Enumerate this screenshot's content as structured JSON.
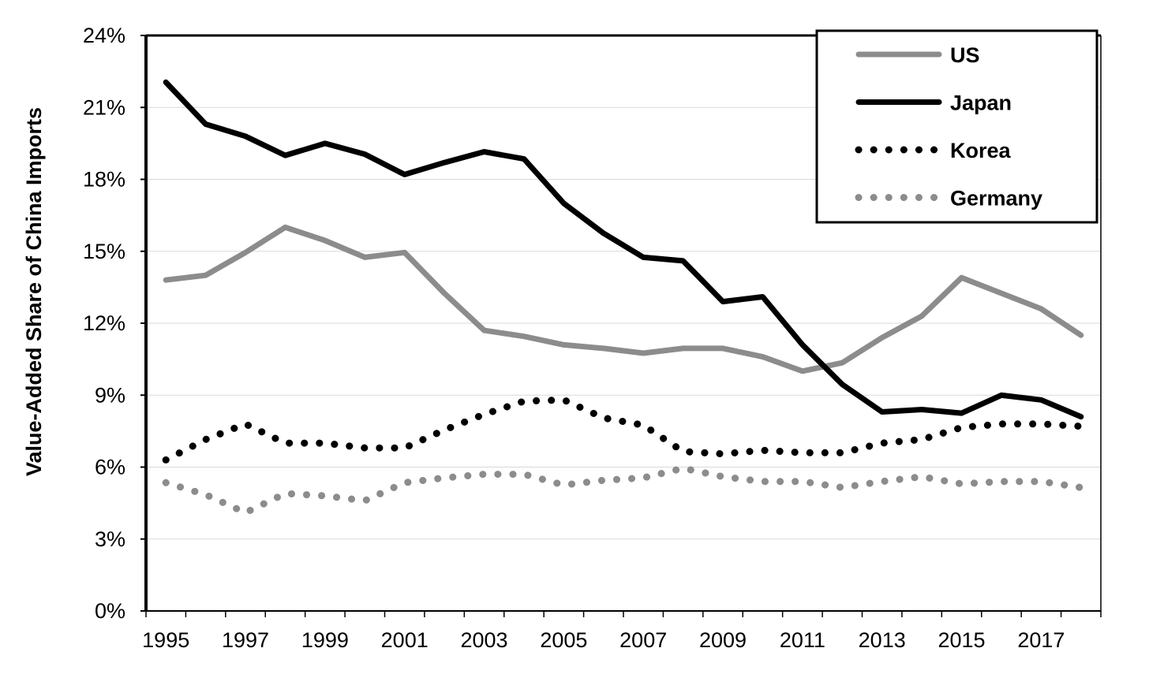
{
  "chart_data": {
    "type": "line",
    "title": "",
    "xlabel": "",
    "ylabel": "Value-Added Share of China Imports",
    "x": [
      1995,
      1996,
      1997,
      1998,
      1999,
      2000,
      2001,
      2002,
      2003,
      2004,
      2005,
      2006,
      2007,
      2008,
      2009,
      2010,
      2011,
      2012,
      2013,
      2014,
      2015,
      2016,
      2017,
      2018
    ],
    "x_tick_labels": [
      "1995",
      "1997",
      "1999",
      "2001",
      "2003",
      "2005",
      "2007",
      "2009",
      "2011",
      "2013",
      "2015",
      "2017"
    ],
    "y_tick_labels": [
      "0%",
      "3%",
      "6%",
      "9%",
      "12%",
      "15%",
      "18%",
      "21%",
      "24%"
    ],
    "ylim": [
      0,
      24
    ],
    "grid": "horizontal",
    "legend_position": "top-right",
    "series": [
      {
        "name": "US",
        "color": "#8c8c8c",
        "style": "solid",
        "values": [
          13.8,
          14.0,
          14.95,
          16.0,
          15.45,
          14.75,
          14.95,
          13.25,
          11.7,
          11.45,
          11.1,
          10.95,
          10.75,
          10.95,
          10.95,
          10.6,
          10.0,
          10.35,
          11.4,
          12.3,
          13.9,
          13.25,
          12.6,
          11.5
        ]
      },
      {
        "name": "Japan",
        "color": "#000000",
        "style": "solid",
        "values": [
          22.05,
          20.3,
          19.8,
          19.0,
          19.5,
          19.05,
          18.2,
          18.7,
          19.15,
          18.85,
          17.0,
          15.75,
          14.75,
          14.6,
          12.9,
          13.1,
          11.1,
          9.45,
          8.3,
          8.4,
          8.25,
          9.0,
          8.8,
          8.1
        ]
      },
      {
        "name": "Korea",
        "color": "#000000",
        "style": "dotted",
        "values": [
          6.3,
          7.15,
          7.8,
          7.0,
          7.0,
          6.8,
          6.8,
          7.55,
          8.2,
          8.75,
          8.8,
          8.05,
          7.75,
          6.65,
          6.55,
          6.7,
          6.6,
          6.6,
          7.0,
          7.15,
          7.65,
          7.8,
          7.8,
          7.7
        ]
      },
      {
        "name": "Germany",
        "color": "#8c8c8c",
        "style": "dotted",
        "values": [
          5.35,
          4.85,
          4.1,
          4.9,
          4.8,
          4.6,
          5.35,
          5.55,
          5.7,
          5.7,
          5.25,
          5.45,
          5.55,
          5.95,
          5.6,
          5.4,
          5.4,
          5.15,
          5.4,
          5.6,
          5.3,
          5.4,
          5.4,
          5.15
        ]
      }
    ]
  }
}
